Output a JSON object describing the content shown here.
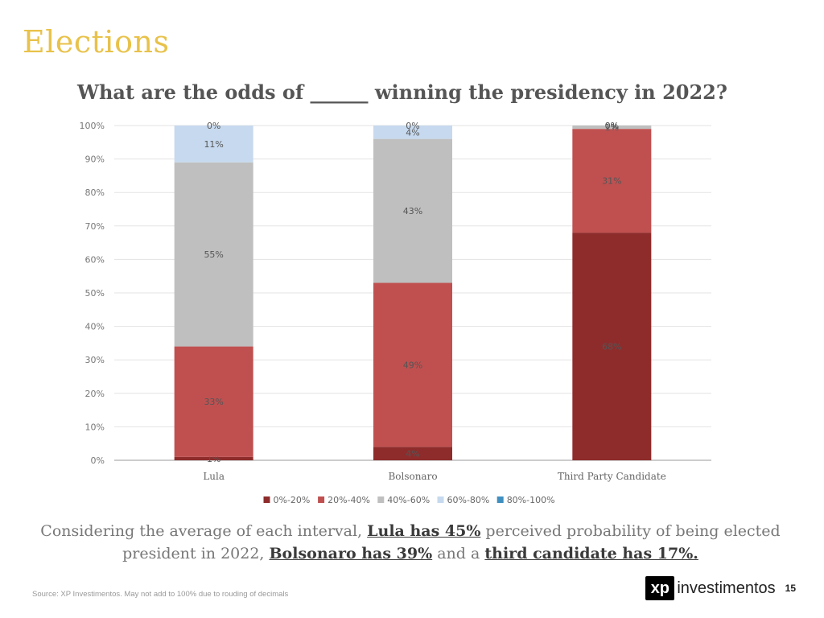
{
  "slide": {
    "title": "Elections",
    "source": "Source: XP Investimentos. May not add to 100% due to rouding of decimals",
    "page_number": "15",
    "brand": {
      "logo_text": "xp",
      "name": "investimentos"
    }
  },
  "footnote": {
    "text_1": "Considering the average of each interval, ",
    "highlight_1": "Lula has 45%",
    "text_2": " perceived probability of being elected president in 2022, ",
    "highlight_2": "Bolsonaro has 39%",
    "text_3": " and a ",
    "highlight_3": "third candidate has 17%."
  },
  "chart_data": {
    "type": "bar",
    "stacked": true,
    "title": "What are the odds of ______ winning the presidency in 2022?",
    "xlabel": "",
    "ylabel": "",
    "ylim": [
      0,
      100
    ],
    "yticks": [
      "0%",
      "10%",
      "20%",
      "30%",
      "40%",
      "50%",
      "60%",
      "70%",
      "80%",
      "90%",
      "100%"
    ],
    "grid": true,
    "legend_position": "bottom",
    "categories": [
      "Lula",
      "Bolsonaro",
      "Third Party Candidate"
    ],
    "series": [
      {
        "name": "0%-20%",
        "color": "#8e2c2c",
        "values": [
          1,
          4,
          68
        ],
        "labels": [
          "1%",
          "4%",
          "68%"
        ]
      },
      {
        "name": "20%-40%",
        "color": "#c05050",
        "values": [
          33,
          49,
          31
        ],
        "labels": [
          "33%",
          "49%",
          "31%"
        ]
      },
      {
        "name": "40%-60%",
        "color": "#bfbfbf",
        "values": [
          55,
          43,
          1
        ],
        "labels": [
          "55%",
          "43%",
          "1%"
        ]
      },
      {
        "name": "60%-80%",
        "color": "#c6d9ee",
        "values": [
          11,
          4,
          0
        ],
        "labels": [
          "11%",
          "4%",
          "0%"
        ]
      },
      {
        "name": "80%-100%",
        "color": "#3f8fc0",
        "values": [
          0,
          0,
          0
        ],
        "labels": [
          "0%",
          "0%",
          "0%"
        ]
      }
    ]
  }
}
